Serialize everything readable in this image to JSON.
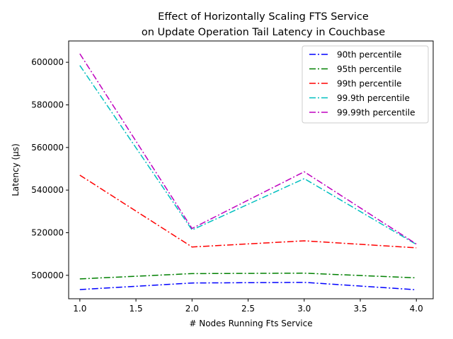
{
  "chart_data": {
    "type": "line",
    "title_line1": "Effect of Horizontally Scaling FTS Service",
    "title_line2": "on Update Operation Tail Latency in Couchbase",
    "xlabel": "# Nodes Running Fts Service",
    "ylabel": "Latency (µs)",
    "x": [
      1.0,
      2.0,
      3.0,
      4.0
    ],
    "xlim": [
      0.9,
      4.15
    ],
    "ylim": [
      489000,
      610000
    ],
    "xticks": [
      1.0,
      1.5,
      2.0,
      2.5,
      3.0,
      3.5,
      4.0
    ],
    "xtick_labels": [
      "1.0",
      "1.5",
      "2.0",
      "2.5",
      "3.0",
      "3.5",
      "4.0"
    ],
    "yticks": [
      500000,
      520000,
      540000,
      560000,
      580000,
      600000
    ],
    "ytick_labels": [
      "500000",
      "520000",
      "540000",
      "560000",
      "580000",
      "600000"
    ],
    "grid": false,
    "legend_position": "top-right",
    "series": [
      {
        "name": "90th percentile",
        "color": "#0000ff",
        "values": [
          493300,
          496400,
          496700,
          493200
        ]
      },
      {
        "name": "95th percentile",
        "color": "#008000",
        "values": [
          498300,
          500800,
          501000,
          498800
        ]
      },
      {
        "name": "99th percentile",
        "color": "#ff0000",
        "values": [
          547000,
          513300,
          516200,
          512900
        ]
      },
      {
        "name": "99.9th percentile",
        "color": "#00bfbf",
        "values": [
          598500,
          521300,
          545400,
          514500
        ]
      },
      {
        "name": "99.99th percentile",
        "color": "#bf00bf",
        "values": [
          604000,
          522000,
          548600,
          514700
        ]
      }
    ]
  }
}
